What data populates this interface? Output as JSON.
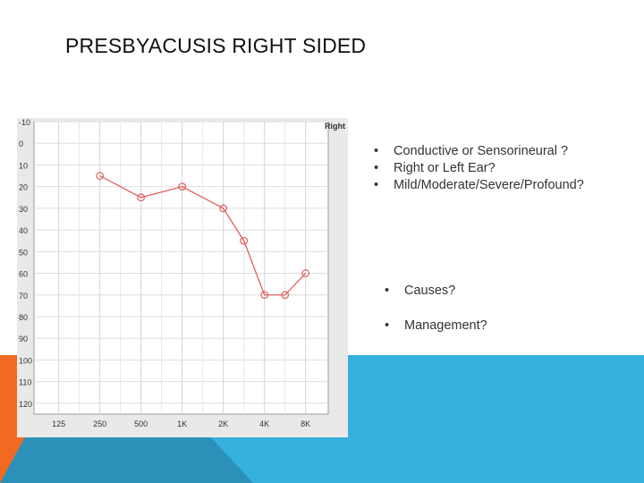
{
  "slide": {
    "title": "PRESBYACUSIS RIGHT SIDED",
    "questions": [
      "Conductive or Sensorineural ?",
      "Right or Left Ear?",
      "Mild/Moderate/Severe/Profound?"
    ],
    "followups": [
      "Causes?",
      "Management?"
    ],
    "bullet_symbol": "•"
  },
  "colors": {
    "accent_blue": "#36b0dd",
    "accent_orange": "#f26a21",
    "accent_teal": "#2b91b8",
    "series_line": "#e06060"
  },
  "chart_data": {
    "type": "line",
    "legend": "Right",
    "legend_placement": "top-right",
    "categories": [
      "125",
      "250",
      "500",
      "1K",
      "2K",
      "4K",
      "8K"
    ],
    "x_extra_ticks": [
      0.5,
      1.5,
      2.5,
      3.5,
      4.5,
      5.5
    ],
    "y_ticks": [
      -10,
      0,
      10,
      20,
      30,
      40,
      50,
      60,
      70,
      80,
      90,
      100,
      110,
      120
    ],
    "ylim": [
      -10,
      125
    ],
    "y_inverted": true,
    "grid": true,
    "series": [
      {
        "name": "Right",
        "marker": "circle",
        "points": [
          {
            "x": 1,
            "y": 15
          },
          {
            "x": 2,
            "y": 25
          },
          {
            "x": 3,
            "y": 20
          },
          {
            "x": 4,
            "y": 30
          },
          {
            "x": 4.5,
            "y": 45
          },
          {
            "x": 5,
            "y": 70
          },
          {
            "x": 5.5,
            "y": 70
          },
          {
            "x": 6,
            "y": 60
          }
        ]
      }
    ]
  }
}
